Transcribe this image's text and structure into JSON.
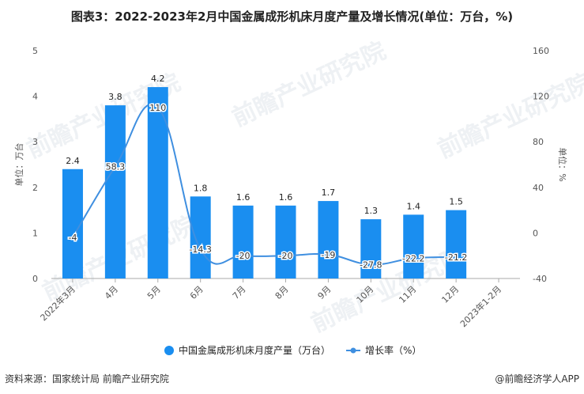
{
  "title": "图表3：2022-2023年2月中国金属成形机床月度产量及增长情况(单位：万台，%)",
  "source": "资料来源：国家统计局 前瞻产业研究院",
  "credit": "@前瞻经济学人APP",
  "watermark": "前瞻产业研究院",
  "colors": {
    "bar": "#1a8ef0",
    "line": "#3f8fe0"
  },
  "chart_data": {
    "type": "bar+line",
    "title": "图表3：2022-2023年2月中国金属成形机床月度产量及增长情况(单位：万台，%)",
    "categories": [
      "2022年3月",
      "4月",
      "5月",
      "6月",
      "7月",
      "8月",
      "9月",
      "10月",
      "11月",
      "12月",
      "2023年1-2月"
    ],
    "y_left": {
      "label": "单位：万台",
      "range": [
        0,
        5
      ],
      "ticks": [
        0,
        1,
        2,
        3,
        4,
        5
      ]
    },
    "y_right": {
      "label": "单位：%",
      "range": [
        -40,
        160
      ],
      "ticks": [
        -40,
        0,
        40,
        80,
        120,
        160
      ]
    },
    "grid": false,
    "legend": "bottom",
    "series": [
      {
        "name": "中国金属成形机床月度产量（万台）",
        "type": "bar",
        "axis": "left",
        "values": [
          2.4,
          3.8,
          4.2,
          1.8,
          1.6,
          1.6,
          1.7,
          1.3,
          1.4,
          1.5,
          null
        ]
      },
      {
        "name": "增长率（%）",
        "type": "line",
        "axis": "right",
        "values": [
          -4,
          58.3,
          110,
          -14.3,
          -20,
          -20,
          -19,
          -27.8,
          -22.2,
          -21.2,
          null
        ]
      }
    ]
  }
}
